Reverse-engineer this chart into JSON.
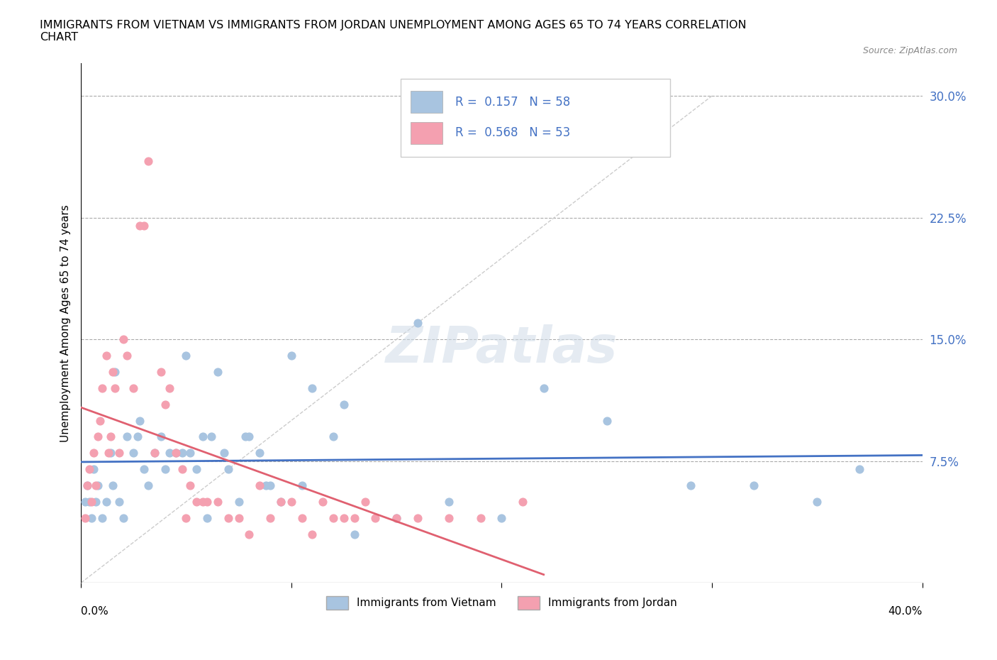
{
  "title": "IMMIGRANTS FROM VIETNAM VS IMMIGRANTS FROM JORDAN UNEMPLOYMENT AMONG AGES 65 TO 74 YEARS CORRELATION\nCHART",
  "source": "Source: ZipAtlas.com",
  "ylabel": "Unemployment Among Ages 65 to 74 years",
  "yticks": [
    0.0,
    0.075,
    0.15,
    0.225,
    0.3
  ],
  "ytick_labels": [
    "",
    "7.5%",
    "15.0%",
    "22.5%",
    "30.0%"
  ],
  "xlim": [
    0.0,
    0.4
  ],
  "ylim": [
    0.0,
    0.32
  ],
  "vietnam_color": "#a8c4e0",
  "jordan_color": "#f4a0b0",
  "vietnam_line_color": "#4472c4",
  "jordan_line_color": "#e06070",
  "R_vietnam": 0.157,
  "N_vietnam": 58,
  "R_jordan": 0.568,
  "N_jordan": 53,
  "vietnam_scatter_x": [
    0.002,
    0.003,
    0.004,
    0.005,
    0.006,
    0.007,
    0.008,
    0.01,
    0.012,
    0.014,
    0.015,
    0.016,
    0.018,
    0.02,
    0.022,
    0.025,
    0.027,
    0.028,
    0.03,
    0.032,
    0.035,
    0.038,
    0.04,
    0.042,
    0.045,
    0.048,
    0.05,
    0.052,
    0.055,
    0.058,
    0.06,
    0.062,
    0.065,
    0.068,
    0.07,
    0.075,
    0.078,
    0.08,
    0.085,
    0.088,
    0.09,
    0.095,
    0.1,
    0.105,
    0.11,
    0.12,
    0.125,
    0.13,
    0.15,
    0.16,
    0.175,
    0.2,
    0.22,
    0.25,
    0.29,
    0.32,
    0.35,
    0.37
  ],
  "vietnam_scatter_y": [
    0.05,
    0.06,
    0.05,
    0.04,
    0.07,
    0.05,
    0.06,
    0.04,
    0.05,
    0.08,
    0.06,
    0.13,
    0.05,
    0.04,
    0.09,
    0.08,
    0.09,
    0.1,
    0.07,
    0.06,
    0.08,
    0.09,
    0.07,
    0.08,
    0.08,
    0.08,
    0.14,
    0.08,
    0.07,
    0.09,
    0.04,
    0.09,
    0.13,
    0.08,
    0.07,
    0.05,
    0.09,
    0.09,
    0.08,
    0.06,
    0.06,
    0.05,
    0.14,
    0.06,
    0.12,
    0.09,
    0.11,
    0.03,
    0.04,
    0.16,
    0.05,
    0.04,
    0.12,
    0.1,
    0.06,
    0.06,
    0.05,
    0.07
  ],
  "jordan_scatter_x": [
    0.002,
    0.003,
    0.004,
    0.005,
    0.006,
    0.007,
    0.008,
    0.009,
    0.01,
    0.012,
    0.013,
    0.014,
    0.015,
    0.016,
    0.018,
    0.02,
    0.022,
    0.025,
    0.028,
    0.03,
    0.032,
    0.035,
    0.038,
    0.04,
    0.042,
    0.045,
    0.048,
    0.05,
    0.052,
    0.055,
    0.058,
    0.06,
    0.065,
    0.07,
    0.075,
    0.08,
    0.085,
    0.09,
    0.095,
    0.1,
    0.105,
    0.11,
    0.115,
    0.12,
    0.125,
    0.13,
    0.135,
    0.14,
    0.15,
    0.16,
    0.175,
    0.19,
    0.21
  ],
  "jordan_scatter_y": [
    0.04,
    0.06,
    0.07,
    0.05,
    0.08,
    0.06,
    0.09,
    0.1,
    0.12,
    0.14,
    0.08,
    0.09,
    0.13,
    0.12,
    0.08,
    0.15,
    0.14,
    0.12,
    0.22,
    0.22,
    0.26,
    0.08,
    0.13,
    0.11,
    0.12,
    0.08,
    0.07,
    0.04,
    0.06,
    0.05,
    0.05,
    0.05,
    0.05,
    0.04,
    0.04,
    0.03,
    0.06,
    0.04,
    0.05,
    0.05,
    0.04,
    0.03,
    0.05,
    0.04,
    0.04,
    0.04,
    0.05,
    0.04,
    0.04,
    0.04,
    0.04,
    0.04,
    0.05
  ],
  "watermark": "ZIPatlas",
  "background_color": "#ffffff"
}
